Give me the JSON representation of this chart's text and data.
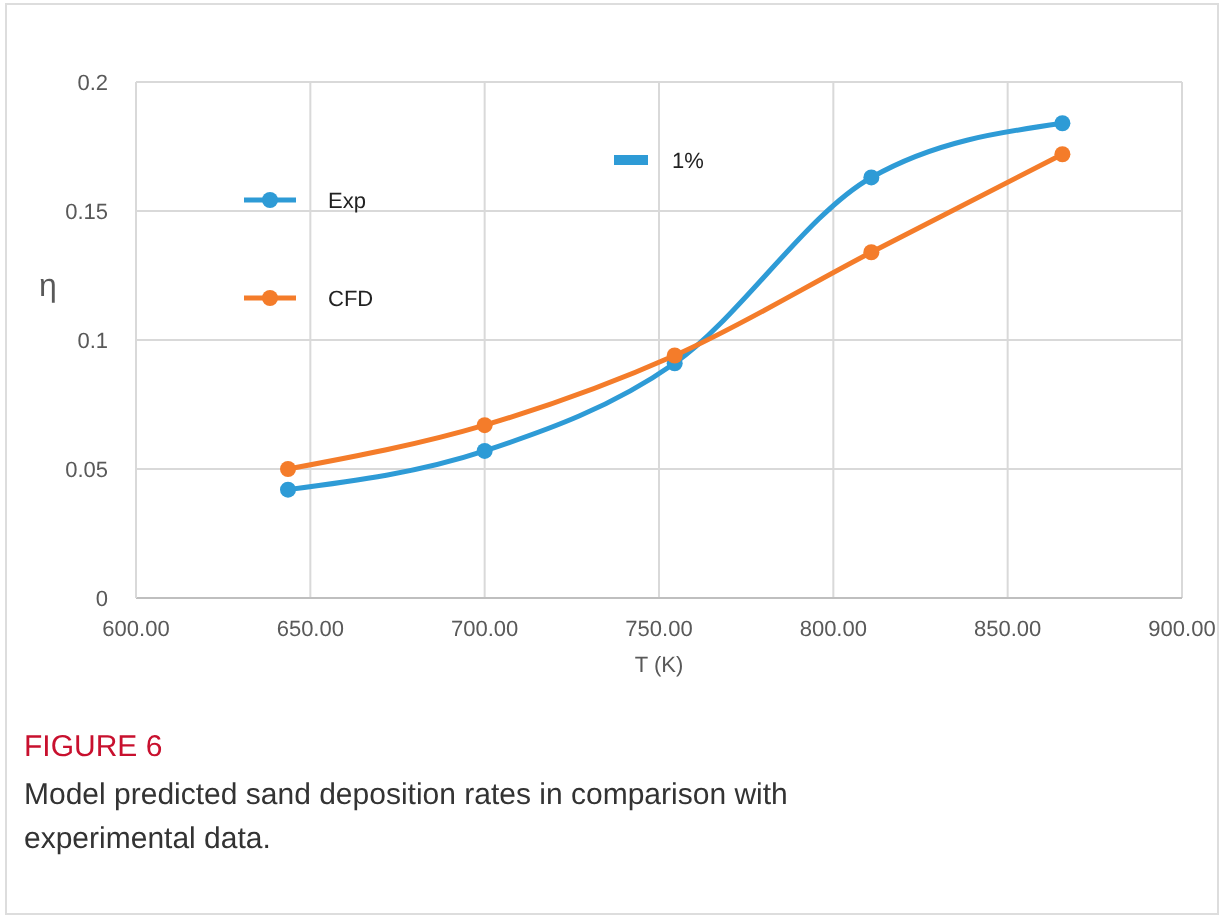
{
  "chart_data": {
    "type": "line",
    "xlabel": "T (K)",
    "ylabel": "η",
    "series": [
      {
        "name": "Exp",
        "color": "#2e9bd6",
        "x": [
          643.6,
          700,
          754.5,
          810.9,
          865.7
        ],
        "values": [
          0.042,
          0.057,
          0.091,
          0.163,
          0.184
        ]
      },
      {
        "name": "CFD",
        "color": "#f47c2a",
        "x": [
          643.6,
          700,
          754.5,
          810.9,
          865.7
        ],
        "values": [
          0.05,
          0.067,
          0.094,
          0.134,
          0.172
        ]
      },
      {
        "name": "1%",
        "type": "bar",
        "color": "#2e9bd6"
      }
    ],
    "xlim": [
      600,
      900
    ],
    "xticks": [
      {
        "value": 600,
        "label": "600.00"
      },
      {
        "value": 650,
        "label": "650.00"
      },
      {
        "value": 700,
        "label": "700.00"
      },
      {
        "value": 750,
        "label": "750.00"
      },
      {
        "value": 800,
        "label": "800.00"
      },
      {
        "value": 850,
        "label": "850.00"
      },
      {
        "value": 900,
        "label": "900.00"
      }
    ],
    "ylim": [
      0,
      0.2
    ],
    "yticks": [
      0,
      0.05,
      0.1,
      0.15,
      0.2
    ],
    "grid": true,
    "legend": "top left",
    "marker": "circle",
    "line_style": "solid",
    "annotations": [
      "FIGURE 6",
      "Model predicted sand deposition rates in comparison with experimental data."
    ]
  }
}
